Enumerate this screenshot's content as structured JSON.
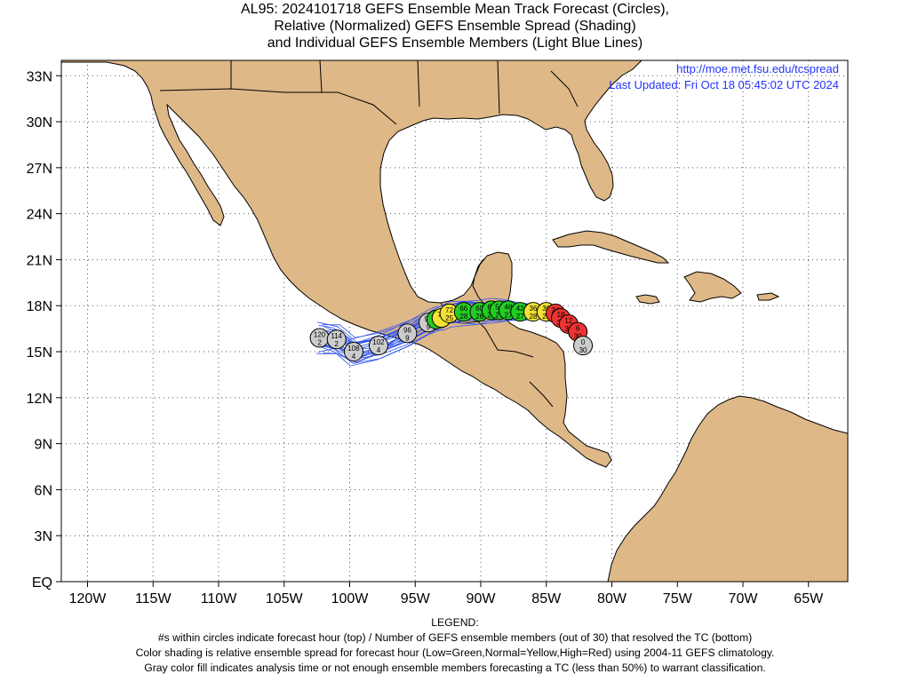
{
  "title_lines": [
    "AL95: 2024101718 GEFS Ensemble Mean Track Forecast (Circles),",
    "Relative (Normalized) GEFS Ensemble Spread (Shading)",
    "and Individual GEFS Ensemble Members (Light Blue Lines)"
  ],
  "url_text": "http://moe.met.fsu.edu/tcspread",
  "updated_text": "Last Updated: Fri Oct 18 05:45:02 UTC 2024",
  "x_ticks": [
    "120W",
    "115W",
    "110W",
    "105W",
    "100W",
    "95W",
    "90W",
    "85W",
    "80W",
    "75W",
    "70W",
    "65W"
  ],
  "y_ticks": [
    "EQ",
    "3N",
    "6N",
    "9N",
    "12N",
    "15N",
    "18N",
    "21N",
    "24N",
    "27N",
    "30N",
    "33N"
  ],
  "map_extent": {
    "lon_min": -122,
    "lon_max": -62,
    "lat_min": 0,
    "lat_max": 34
  },
  "colors": {
    "land": "#deb887",
    "ocean": "#ffffff",
    "track": "#3355ee",
    "green": "#22cc22",
    "yellow": "#f2e233",
    "red": "#ee3333",
    "gray": "#cccccc",
    "link": "#2233ff"
  },
  "legend_lines": [
    "LEGEND:",
    "#s within circles indicate forecast hour (top) / Number of GEFS ensemble members (out of 30) that resolved the TC (bottom)",
    "Color shading is relative ensemble spread for forecast hour (Low=Green,Normal=Yellow,High=Red) using 2004-11 GEFS climatology.",
    "Gray color fill indicates analysis time or not enough ensemble members forecasting a TC (less than 50%) to warrant classification."
  ],
  "track_points": [
    {
      "lon": -82.2,
      "lat": 15.4,
      "hour": "0",
      "members": "30",
      "category": "gray"
    },
    {
      "lon": -82.6,
      "lat": 16.3,
      "hour": "6",
      "members": "30",
      "category": "red"
    },
    {
      "lon": -83.3,
      "lat": 16.8,
      "hour": "12",
      "members": "30",
      "category": "red"
    },
    {
      "lon": -83.9,
      "lat": 17.2,
      "hour": "18",
      "members": "30",
      "category": "red"
    },
    {
      "lon": -84.3,
      "lat": 17.5,
      "hour": "24",
      "members": "29",
      "category": "red"
    },
    {
      "lon": -85.0,
      "lat": 17.6,
      "hour": "30",
      "members": "29",
      "category": "yellow"
    },
    {
      "lon": -86.0,
      "lat": 17.6,
      "hour": "36",
      "members": "28",
      "category": "yellow"
    },
    {
      "lon": -87.0,
      "lat": 17.6,
      "hour": "42",
      "members": "27",
      "category": "green"
    },
    {
      "lon": -87.9,
      "lat": 17.7,
      "hour": "48",
      "members": "27",
      "category": "green"
    },
    {
      "lon": -88.6,
      "lat": 17.7,
      "hour": "54",
      "members": "27",
      "category": "green"
    },
    {
      "lon": -89.2,
      "lat": 17.7,
      "hour": "60",
      "members": "27",
      "category": "green"
    },
    {
      "lon": -90.1,
      "lat": 17.6,
      "hour": "60",
      "members": "26",
      "category": "green"
    },
    {
      "lon": -91.3,
      "lat": 17.6,
      "hour": "66",
      "members": "28",
      "category": "green"
    },
    {
      "lon": -92.4,
      "lat": 17.5,
      "hour": "72",
      "members": "25",
      "category": "yellow"
    },
    {
      "lon": -93.0,
      "lat": 17.2,
      "hour": "78",
      "members": "",
      "category": "yellow"
    },
    {
      "lon": -93.4,
      "lat": 17.1,
      "hour": "84",
      "members": "",
      "category": "green"
    },
    {
      "lon": -94.0,
      "lat": 16.9,
      "hour": "90",
      "members": "9",
      "category": "gray"
    },
    {
      "lon": -95.6,
      "lat": 16.2,
      "hour": "96",
      "members": "9",
      "category": "gray"
    },
    {
      "lon": -97.8,
      "lat": 15.4,
      "hour": "102",
      "members": "4",
      "category": "gray"
    },
    {
      "lon": -99.7,
      "lat": 15.0,
      "hour": "108",
      "members": "4",
      "category": "gray"
    },
    {
      "lon": -101.0,
      "lat": 15.8,
      "hour": "114",
      "members": "2",
      "category": "gray"
    },
    {
      "lon": -102.3,
      "lat": 15.9,
      "hour": "120",
      "members": "2",
      "category": "gray"
    }
  ]
}
